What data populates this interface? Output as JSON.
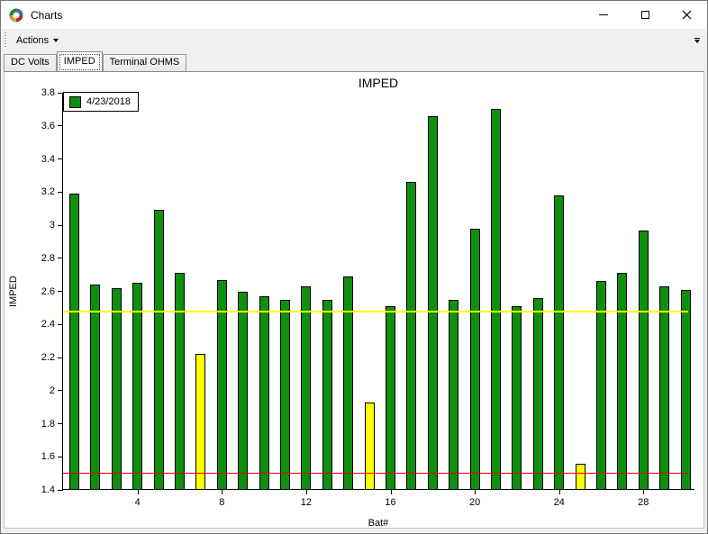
{
  "window": {
    "title": "Charts"
  },
  "toolbar": {
    "actions_label": "Actions"
  },
  "tabs": {
    "items": [
      {
        "label": "DC Volts",
        "active": false
      },
      {
        "label": "IMPED",
        "active": true
      },
      {
        "label": "Terminal OHMS",
        "active": false
      }
    ]
  },
  "chart_data": {
    "type": "bar",
    "title": "IMPED",
    "xlabel": "Bat#",
    "ylabel": "IMPED",
    "legend": [
      {
        "label": "4/23/2018",
        "color": "#0E8F0E"
      }
    ],
    "legend_position": "top-left",
    "grid": false,
    "x": [
      1,
      2,
      3,
      4,
      5,
      6,
      7,
      8,
      9,
      10,
      11,
      12,
      13,
      14,
      15,
      16,
      17,
      18,
      19,
      20,
      21,
      22,
      23,
      24,
      25,
      26,
      27,
      28,
      29,
      30
    ],
    "values": [
      3.19,
      2.64,
      2.62,
      2.65,
      3.09,
      2.71,
      2.22,
      2.67,
      2.6,
      2.57,
      2.55,
      2.63,
      2.55,
      2.69,
      1.93,
      2.51,
      3.26,
      3.66,
      2.55,
      2.98,
      3.7,
      2.51,
      2.56,
      3.18,
      1.56,
      2.66,
      2.71,
      2.97,
      2.63,
      2.61
    ],
    "bar_color": "#0E8F0E",
    "highlight_color": "#FFFF00",
    "highlighted_bars": [
      7,
      15,
      25
    ],
    "ylim": [
      1.4,
      3.8
    ],
    "ytick_step": 0.2,
    "xticks": [
      4,
      8,
      12,
      16,
      20,
      24,
      28
    ],
    "reference_lines": [
      {
        "value": 2.48,
        "color": "#FFFF00"
      },
      {
        "value": 1.5,
        "color": "#E60000"
      }
    ]
  }
}
